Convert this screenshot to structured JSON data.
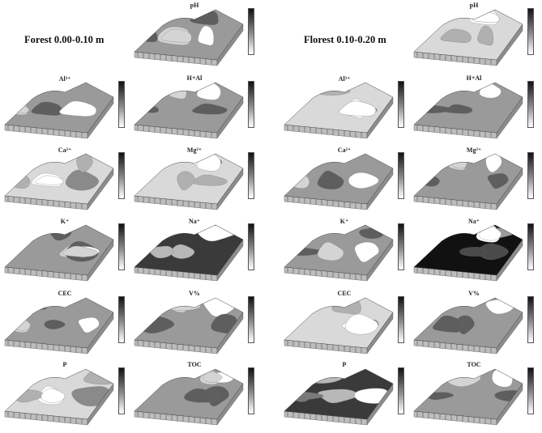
{
  "figure": {
    "sections": [
      {
        "title": "Forest 0.00-0.10 m"
      },
      {
        "title": "Florest 0.10-0.20 m"
      }
    ],
    "panels": [
      {
        "label": "pH",
        "section": 0,
        "tone": "mid"
      },
      {
        "label": "pH",
        "section": 1,
        "tone": "light"
      },
      {
        "label": "Al³⁺",
        "section": 0,
        "tone": "mid"
      },
      {
        "label": "H+Al",
        "section": 0,
        "tone": "mid"
      },
      {
        "label": "Al³⁺",
        "section": 1,
        "tone": "light"
      },
      {
        "label": "H+Al",
        "section": 1,
        "tone": "mid"
      },
      {
        "label": "Ca²⁺",
        "section": 0,
        "tone": "light"
      },
      {
        "label": "Mg²⁺",
        "section": 0,
        "tone": "light"
      },
      {
        "label": "Ca²⁺",
        "section": 1,
        "tone": "mid"
      },
      {
        "label": "Mg²⁺",
        "section": 1,
        "tone": "mid"
      },
      {
        "label": "K⁺",
        "section": 0,
        "tone": "mid"
      },
      {
        "label": "Na⁺",
        "section": 0,
        "tone": "dark"
      },
      {
        "label": "K⁺",
        "section": 1,
        "tone": "mid"
      },
      {
        "label": "Na⁺",
        "section": 1,
        "tone": "black"
      },
      {
        "label": "CEC",
        "section": 0,
        "tone": "mid"
      },
      {
        "label": "V%",
        "section": 0,
        "tone": "mid"
      },
      {
        "label": "CEC",
        "section": 1,
        "tone": "light"
      },
      {
        "label": "V%",
        "section": 1,
        "tone": "mid"
      },
      {
        "label": "P",
        "section": 0,
        "tone": "light"
      },
      {
        "label": "TOC",
        "section": 0,
        "tone": "mid"
      },
      {
        "label": "P",
        "section": 1,
        "tone": "dark"
      },
      {
        "label": "TOC",
        "section": 1,
        "tone": "mid"
      }
    ]
  }
}
